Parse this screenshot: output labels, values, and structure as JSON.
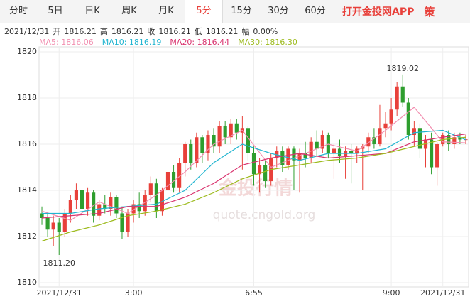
{
  "tabs": [
    "分时",
    "5日",
    "日K",
    "周K",
    "月K",
    "5分",
    "15分",
    "30分",
    "60分"
  ],
  "active_tab": 5,
  "app_link": "打开金投网APP",
  "strategy": "策",
  "info": [
    "2021/12/31",
    "开",
    "1816.21",
    "高",
    "1816.21",
    "收",
    "1816.21",
    "低",
    "1816.21",
    "幅",
    "0.00%"
  ],
  "watermark": [
    "金投行情",
    "quote.cngold.org"
  ],
  "chart_data": {
    "type": "candlestick",
    "up_color": "#e8403a",
    "down_color": "#2e9e2e",
    "grid": true,
    "ylim": [
      1810,
      1820
    ],
    "yticks": [
      1810,
      1812,
      1814,
      1816,
      1818,
      1820
    ],
    "categories": [
      null,
      null,
      null,
      "2021/12/31",
      null,
      null,
      null,
      null,
      null,
      null,
      null,
      null,
      null,
      null,
      null,
      null,
      "3:00",
      null,
      null,
      null,
      null,
      null,
      null,
      null,
      null,
      null,
      null,
      null,
      null,
      null,
      null,
      null,
      null,
      null,
      null,
      null,
      null,
      "6:55",
      null,
      null,
      null,
      null,
      null,
      null,
      null,
      null,
      null,
      null,
      null,
      null,
      null,
      null,
      null,
      null,
      null,
      null,
      null,
      null,
      null,
      null,
      null,
      "9:00",
      null,
      null,
      null,
      null,
      null,
      null,
      null,
      null,
      "2021/12/31",
      null,
      null,
      null,
      null
    ],
    "ohlc": [
      [
        1813.0,
        1813.3,
        1812.5,
        1812.8
      ],
      [
        1812.8,
        1813.0,
        1812.0,
        1812.3
      ],
      [
        1812.3,
        1812.9,
        1811.6,
        1812.6
      ],
      [
        1812.6,
        1812.8,
        1811.2,
        1812.2
      ],
      [
        1812.2,
        1813.2,
        1812.0,
        1813.0
      ],
      [
        1813.0,
        1813.8,
        1812.6,
        1813.6
      ],
      [
        1813.6,
        1814.3,
        1813.2,
        1814.0
      ],
      [
        1814.0,
        1814.2,
        1813.0,
        1813.2
      ],
      [
        1813.2,
        1814.1,
        1812.9,
        1813.9
      ],
      [
        1813.9,
        1814.0,
        1812.6,
        1812.9
      ],
      [
        1812.9,
        1813.6,
        1812.7,
        1813.4
      ],
      [
        1813.4,
        1813.8,
        1813.0,
        1813.2
      ],
      [
        1813.2,
        1813.9,
        1812.9,
        1813.7
      ],
      [
        1813.7,
        1813.8,
        1812.8,
        1813.0
      ],
      [
        1813.0,
        1813.3,
        1811.9,
        1812.2
      ],
      [
        1812.2,
        1813.2,
        1812.0,
        1813.0
      ],
      [
        1813.0,
        1813.6,
        1812.6,
        1813.4
      ],
      [
        1813.4,
        1813.9,
        1812.8,
        1813.1
      ],
      [
        1813.1,
        1814.0,
        1812.9,
        1813.8
      ],
      [
        1813.8,
        1814.6,
        1813.5,
        1814.3
      ],
      [
        1814.3,
        1814.5,
        1812.8,
        1813.1
      ],
      [
        1813.1,
        1814.1,
        1812.9,
        1814.0
      ],
      [
        1814.0,
        1815.0,
        1813.8,
        1814.8
      ],
      [
        1814.8,
        1815.1,
        1813.9,
        1814.1
      ],
      [
        1814.1,
        1815.4,
        1813.9,
        1815.2
      ],
      [
        1815.2,
        1816.1,
        1814.6,
        1816.0
      ],
      [
        1816.0,
        1816.2,
        1814.9,
        1815.2
      ],
      [
        1815.2,
        1816.5,
        1815.0,
        1816.3
      ],
      [
        1816.3,
        1816.4,
        1815.2,
        1815.6
      ],
      [
        1815.6,
        1816.6,
        1815.3,
        1816.4
      ],
      [
        1816.4,
        1816.7,
        1815.6,
        1815.9
      ],
      [
        1815.9,
        1817.0,
        1815.6,
        1816.8
      ],
      [
        1816.8,
        1817.0,
        1816.0,
        1816.3
      ],
      [
        1816.3,
        1817.1,
        1816.0,
        1816.9
      ],
      [
        1816.9,
        1817.1,
        1816.2,
        1816.5
      ],
      [
        1816.5,
        1817.2,
        1814.9,
        1816.7
      ],
      [
        1816.7,
        1816.8,
        1815.3,
        1815.6
      ],
      [
        1815.6,
        1815.9,
        1814.2,
        1814.7
      ],
      [
        1814.7,
        1815.4,
        1813.9,
        1815.1
      ],
      [
        1815.1,
        1815.3,
        1814.1,
        1814.4
      ],
      [
        1814.4,
        1815.6,
        1814.2,
        1815.4
      ],
      [
        1815.4,
        1815.9,
        1815.0,
        1815.7
      ],
      [
        1815.7,
        1815.9,
        1814.8,
        1815.1
      ],
      [
        1815.1,
        1815.9,
        1814.9,
        1815.8
      ],
      [
        1815.8,
        1815.9,
        1814.0,
        1815.3
      ],
      [
        1815.3,
        1815.8,
        1813.9,
        1815.6
      ],
      [
        1815.6,
        1816.1,
        1815.0,
        1815.4
      ],
      [
        1815.4,
        1816.3,
        1815.2,
        1816.1
      ],
      [
        1816.1,
        1816.6,
        1815.5,
        1815.8
      ],
      [
        1815.8,
        1816.6,
        1815.6,
        1816.4
      ],
      [
        1816.4,
        1816.5,
        1815.4,
        1815.6
      ],
      [
        1815.6,
        1816.0,
        1814.5,
        1815.8
      ],
      [
        1815.8,
        1816.2,
        1815.2,
        1815.5
      ],
      [
        1815.5,
        1815.9,
        1814.5,
        1815.7
      ],
      [
        1815.7,
        1816.0,
        1814.3,
        1815.6
      ],
      [
        1815.6,
        1815.9,
        1815.2,
        1815.8
      ],
      [
        1815.8,
        1816.0,
        1814.0,
        1815.9
      ],
      [
        1815.9,
        1816.5,
        1815.6,
        1816.3
      ],
      [
        1816.3,
        1816.7,
        1815.8,
        1816.0
      ],
      [
        1816.0,
        1817.7,
        1815.9,
        1816.7
      ],
      [
        1816.7,
        1817.4,
        1816.3,
        1816.9
      ],
      [
        1816.9,
        1818.0,
        1816.6,
        1817.5
      ],
      [
        1817.5,
        1818.7,
        1817.2,
        1818.5
      ],
      [
        1818.5,
        1819.02,
        1817.6,
        1817.8
      ],
      [
        1817.8,
        1818.0,
        1816.2,
        1816.4
      ],
      [
        1816.4,
        1817.0,
        1815.9,
        1816.7
      ],
      [
        1816.7,
        1816.9,
        1815.4,
        1815.8
      ],
      [
        1815.8,
        1816.4,
        1815.0,
        1816.2
      ],
      [
        1816.2,
        1816.5,
        1814.7,
        1815.0
      ],
      [
        1815.0,
        1816.1,
        1814.2,
        1816.0
      ],
      [
        1816.0,
        1816.5,
        1815.9,
        1816.4
      ],
      [
        1816.4,
        1816.6,
        1815.7,
        1816.0
      ],
      [
        1816.0,
        1816.5,
        1815.8,
        1816.3
      ],
      [
        1816.3,
        1816.5,
        1816.0,
        1816.2
      ],
      [
        1816.2,
        1816.4,
        1816.0,
        1816.21
      ]
    ],
    "series": [
      {
        "name": "MA5: 1816.06",
        "color": "#f28fb0",
        "x": [
          0,
          5,
          10,
          15,
          20,
          25,
          30,
          35,
          40,
          45,
          50,
          55,
          60,
          65,
          70,
          74
        ],
        "values": [
          1813.1,
          1812.7,
          1813.5,
          1813.0,
          1813.8,
          1814.8,
          1816.0,
          1816.6,
          1815.0,
          1815.5,
          1816.0,
          1815.7,
          1816.6,
          1817.6,
          1816.1,
          1816.06
        ]
      },
      {
        "name": "MA10: 1816.19",
        "color": "#22b5d0",
        "x": [
          0,
          5,
          10,
          15,
          20,
          25,
          30,
          35,
          40,
          45,
          50,
          55,
          60,
          65,
          70,
          74
        ],
        "values": [
          1813.0,
          1813.0,
          1813.2,
          1813.3,
          1813.4,
          1814.0,
          1815.2,
          1816.0,
          1815.6,
          1815.3,
          1815.6,
          1815.6,
          1815.8,
          1816.5,
          1816.6,
          1816.19
        ]
      },
      {
        "name": "MA20: 1816.44",
        "color": "#d9336e",
        "x": [
          0,
          5,
          10,
          15,
          20,
          25,
          30,
          35,
          40,
          45,
          50,
          55,
          60,
          65,
          70,
          74
        ],
        "values": [
          1812.8,
          1812.9,
          1813.0,
          1813.3,
          1813.3,
          1813.7,
          1814.3,
          1815.1,
          1815.4,
          1815.6,
          1815.4,
          1815.5,
          1815.6,
          1816.1,
          1816.3,
          1816.44
        ]
      },
      {
        "name": "MA30: 1816.30",
        "color": "#9dbb1e",
        "x": [
          0,
          5,
          10,
          15,
          20,
          25,
          30,
          35,
          40,
          45,
          50,
          55,
          60,
          65,
          70,
          74
        ],
        "values": [
          1811.8,
          1812.2,
          1812.5,
          1812.9,
          1813.1,
          1813.4,
          1813.9,
          1814.5,
          1814.9,
          1815.1,
          1815.3,
          1815.4,
          1815.6,
          1815.9,
          1816.2,
          1816.3
        ]
      }
    ],
    "annotations": [
      {
        "text": "1819.02",
        "index": 63,
        "value": 1819.02
      },
      {
        "text": "1811.20",
        "index": 3,
        "value": 1811.2
      }
    ]
  }
}
